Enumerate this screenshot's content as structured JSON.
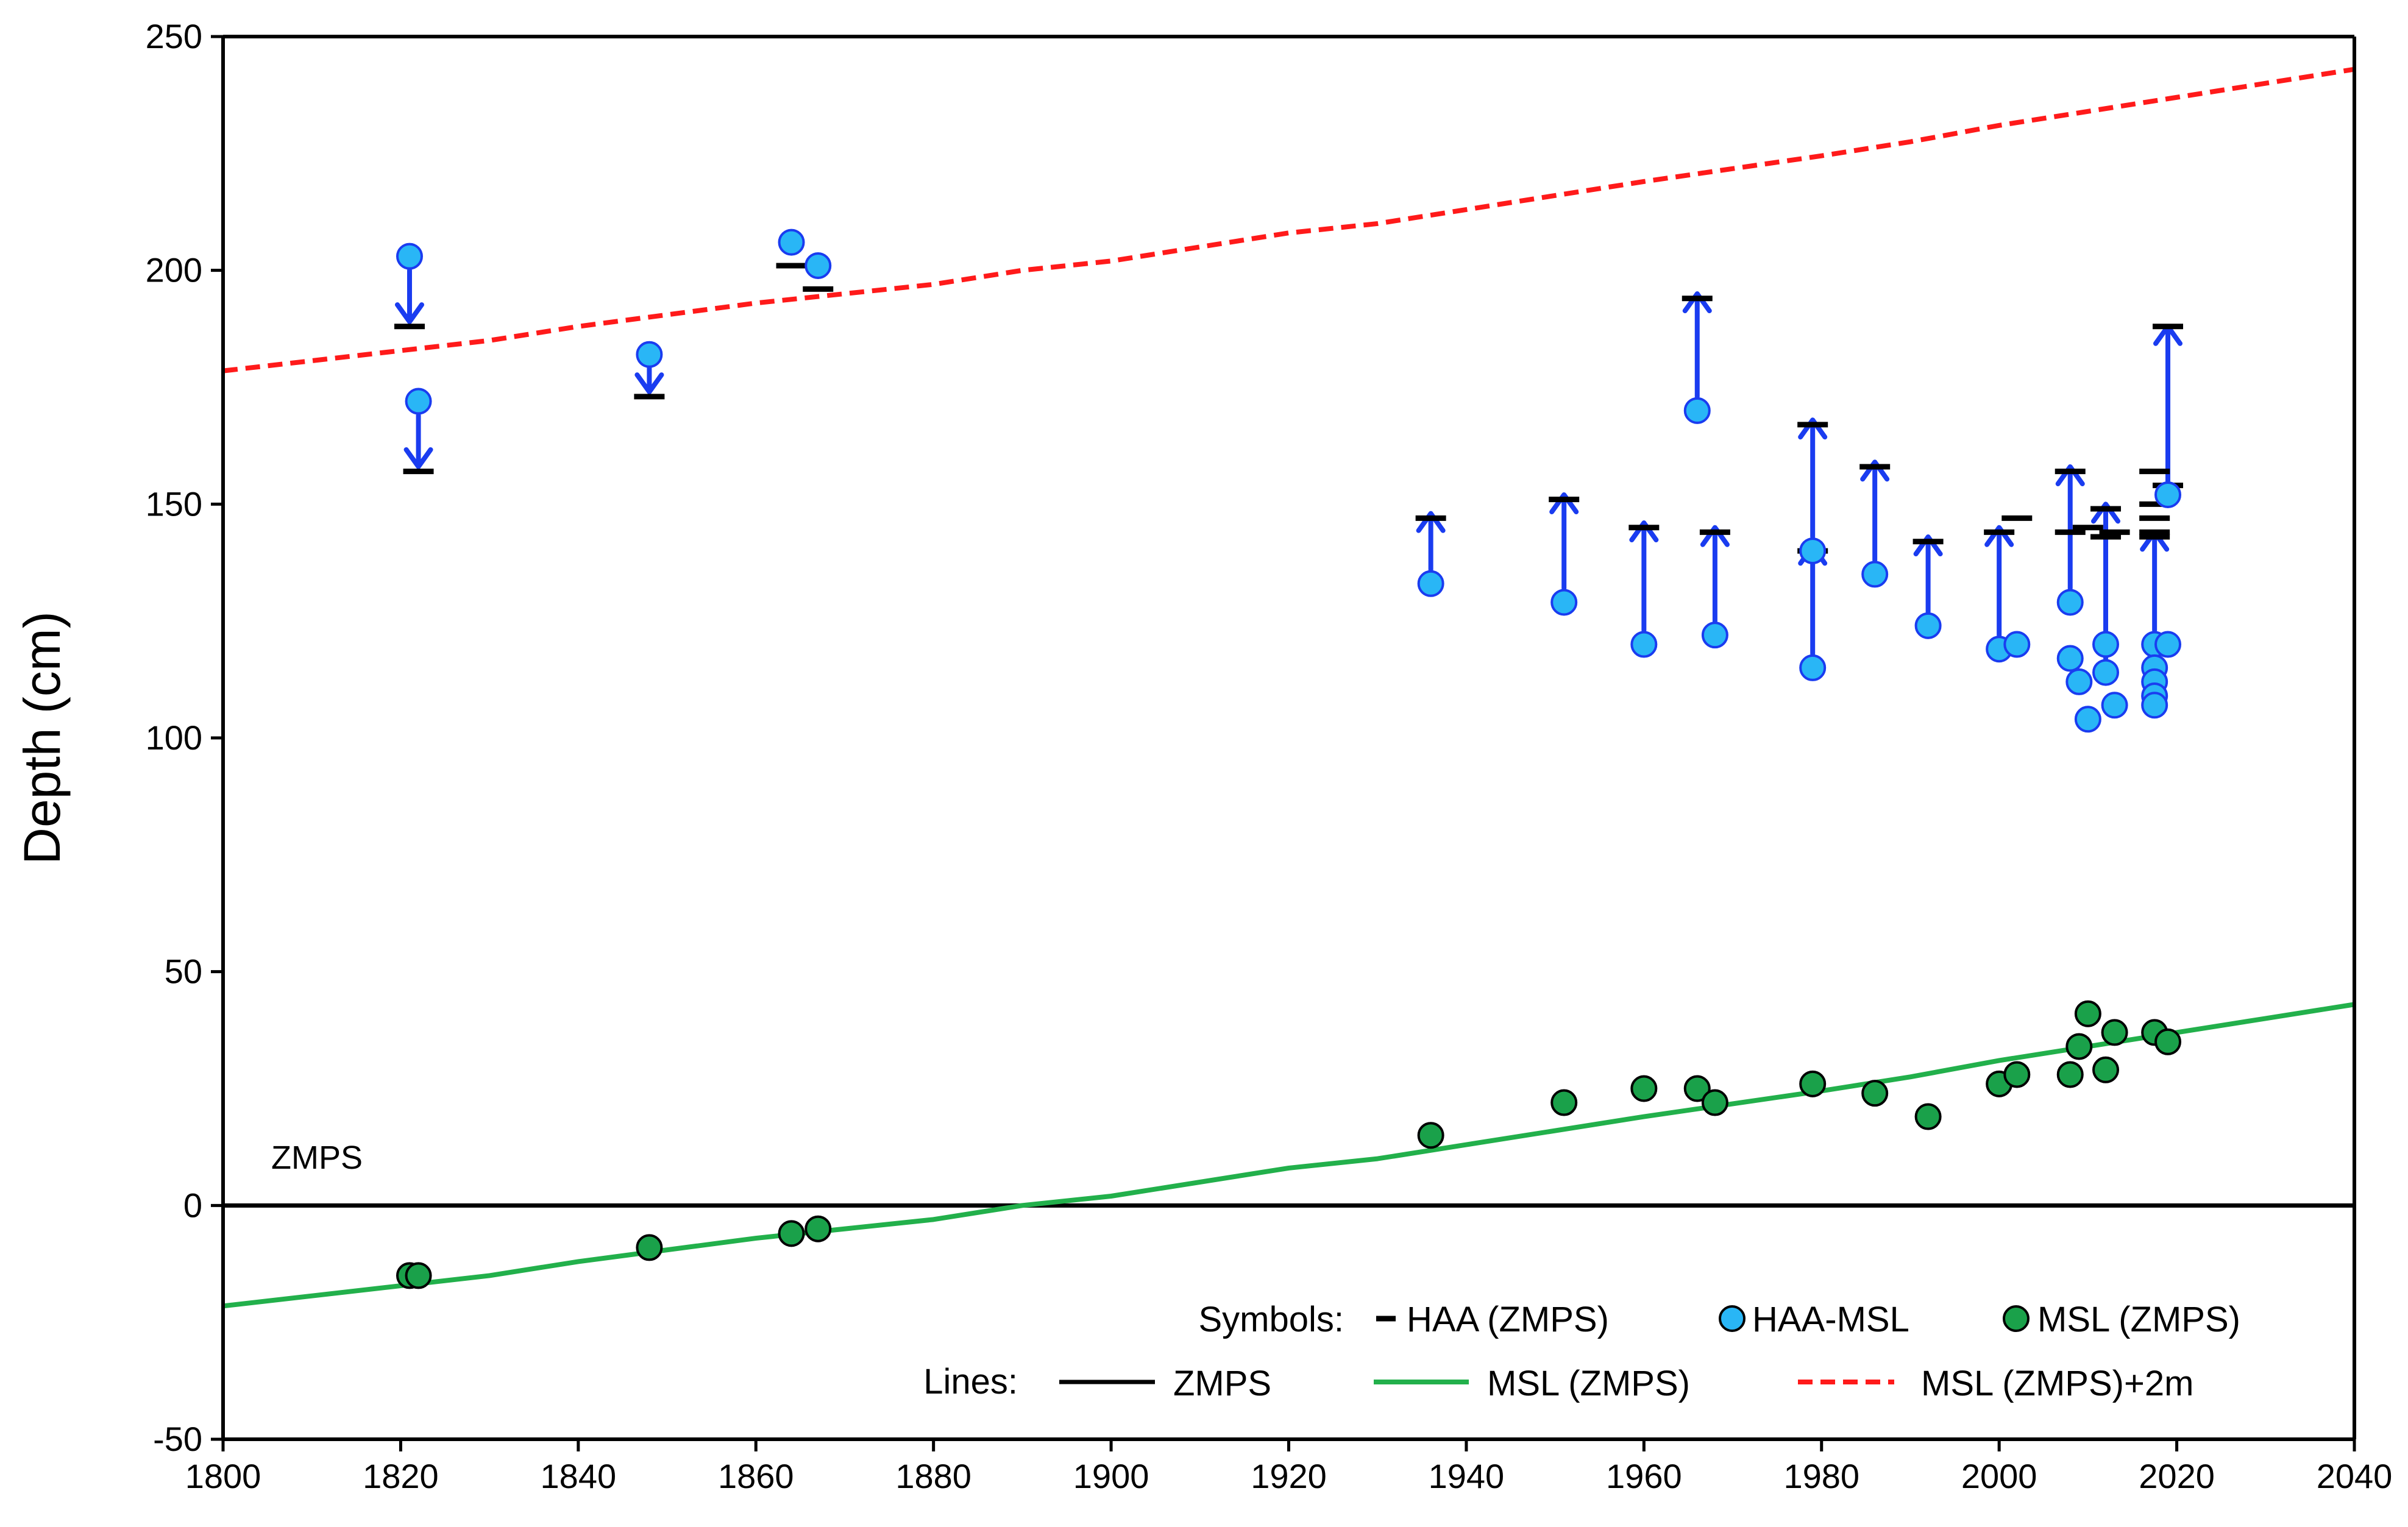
{
  "chart_data": {
    "type": "scatter",
    "title": "",
    "xlabel": "",
    "ylabel": "Depth (cm)",
    "xlim": [
      1800,
      2040
    ],
    "ylim": [
      -50,
      250
    ],
    "xticks": [
      1800,
      1820,
      1840,
      1860,
      1880,
      1900,
      1920,
      1940,
      1960,
      1980,
      2000,
      2020,
      2040
    ],
    "yticks": [
      -50,
      0,
      50,
      100,
      150,
      200,
      250
    ],
    "annotation": "ZMPS",
    "colors": {
      "haa_msl": "#29b6f6",
      "msl_points": "#1aa14a",
      "arrow": "#1a3cf0",
      "msl_line": "#22b04b",
      "msl_plus_2m": "#ff1a1a",
      "zmps": "#000000"
    },
    "legend": {
      "symbols_label": "Symbols:",
      "lines_label": "Lines:",
      "symbols": [
        "HAA (ZMPS)",
        "HAA-MSL",
        "MSL (ZMPS)"
      ],
      "lines": [
        "ZMPS",
        "MSL (ZMPS)",
        "MSL (ZMPS)+2m"
      ]
    },
    "series": [
      {
        "name": "HAA (ZMPS)",
        "marker": "dash",
        "points": [
          [
            1821,
            188
          ],
          [
            1822,
            157
          ],
          [
            1848,
            173
          ],
          [
            1864,
            201
          ],
          [
            1867,
            196
          ],
          [
            1936,
            147
          ],
          [
            1951,
            151
          ],
          [
            1960,
            145
          ],
          [
            1966,
            194
          ],
          [
            1968,
            144
          ],
          [
            1979,
            167
          ],
          [
            1979,
            140
          ],
          [
            1986,
            158
          ],
          [
            1992,
            142
          ],
          [
            2000,
            144
          ],
          [
            2002,
            147
          ],
          [
            2008,
            157
          ],
          [
            2008,
            144
          ],
          [
            2010,
            145
          ],
          [
            2012,
            149
          ],
          [
            2012,
            143
          ],
          [
            2013,
            144
          ],
          [
            2017.5,
            157
          ],
          [
            2017.5,
            150
          ],
          [
            2017.5,
            147
          ],
          [
            2017.5,
            144
          ],
          [
            2017.5,
            143
          ],
          [
            2019,
            188
          ],
          [
            2019,
            154
          ]
        ]
      },
      {
        "name": "HAA-MSL",
        "marker": "circle",
        "points": [
          [
            1821,
            203
          ],
          [
            1822,
            172
          ],
          [
            1848,
            182
          ],
          [
            1864,
            206
          ],
          [
            1867,
            201
          ],
          [
            1936,
            133
          ],
          [
            1951,
            129
          ],
          [
            1960,
            120
          ],
          [
            1966,
            170
          ],
          [
            1968,
            122
          ],
          [
            1979,
            115
          ],
          [
            1979,
            140
          ],
          [
            1986,
            135
          ],
          [
            1992,
            124
          ],
          [
            2000,
            119
          ],
          [
            2002,
            120
          ],
          [
            2008,
            129
          ],
          [
            2008,
            117
          ],
          [
            2009,
            112
          ],
          [
            2010,
            104
          ],
          [
            2012,
            114
          ],
          [
            2012,
            120
          ],
          [
            2013,
            107
          ],
          [
            2017.5,
            120
          ],
          [
            2017.5,
            115
          ],
          [
            2017.5,
            112
          ],
          [
            2017.5,
            109
          ],
          [
            2017.5,
            107
          ],
          [
            2019,
            120
          ],
          [
            2019,
            152
          ]
        ]
      },
      {
        "name": "MSL (ZMPS)",
        "marker": "circle",
        "points": [
          [
            1821,
            -15
          ],
          [
            1822,
            -15
          ],
          [
            1848,
            -9
          ],
          [
            1864,
            -6
          ],
          [
            1867,
            -5
          ],
          [
            1936,
            15
          ],
          [
            1951,
            22
          ],
          [
            1960,
            25
          ],
          [
            1966,
            25
          ],
          [
            1968,
            22
          ],
          [
            1979,
            26
          ],
          [
            1986,
            24
          ],
          [
            1992,
            19
          ],
          [
            2000,
            26
          ],
          [
            2002,
            28
          ],
          [
            2008,
            28
          ],
          [
            2009,
            34
          ],
          [
            2010,
            41
          ],
          [
            2012,
            29
          ],
          [
            2013,
            37
          ],
          [
            2017.5,
            37
          ],
          [
            2019,
            35
          ]
        ]
      },
      {
        "name": "HAA-MSL arrows",
        "marker": "arrow",
        "points": [
          [
            1821,
            200,
            189
          ],
          [
            1822,
            169,
            158
          ],
          [
            1848,
            179,
            174
          ],
          [
            1936,
            136,
            148
          ],
          [
            1951,
            132,
            152
          ],
          [
            1960,
            123,
            146
          ],
          [
            1966,
            173,
            195
          ],
          [
            1968,
            125,
            145
          ],
          [
            1979,
            118,
            141
          ],
          [
            1979,
            143,
            168
          ],
          [
            1986,
            138,
            159
          ],
          [
            1992,
            127,
            143
          ],
          [
            2000,
            122,
            145
          ],
          [
            2008,
            132,
            158
          ],
          [
            2012,
            117,
            150
          ],
          [
            2017.5,
            123,
            144
          ],
          [
            2019,
            155,
            188
          ]
        ]
      },
      {
        "name": "ZMPS",
        "type": "line",
        "x": [
          1800,
          2040
        ],
        "y": [
          0,
          0
        ]
      },
      {
        "name": "MSL (ZMPS)",
        "type": "line",
        "x": [
          1800,
          1830,
          1840,
          1860,
          1880,
          1890,
          1900,
          1920,
          1930,
          1940,
          1960,
          1980,
          1990,
          2000,
          2010,
          2020,
          2030,
          2040
        ],
        "y": [
          -21.5,
          -15,
          -12,
          -7,
          -3,
          0,
          2,
          8,
          10,
          13,
          19,
          24.5,
          27.5,
          31,
          34,
          37,
          40,
          43
        ]
      },
      {
        "name": "MSL (ZMPS)+2m",
        "type": "line",
        "dash": true,
        "x": [
          1800,
          1830,
          1840,
          1860,
          1880,
          1890,
          1900,
          1920,
          1930,
          1940,
          1960,
          1980,
          1990,
          2000,
          2010,
          2020,
          2030,
          2040
        ],
        "y": [
          178.5,
          185,
          188,
          193,
          197,
          200,
          202,
          208,
          210,
          213,
          219,
          224.5,
          227.5,
          231,
          234,
          237,
          240,
          243
        ]
      }
    ]
  }
}
